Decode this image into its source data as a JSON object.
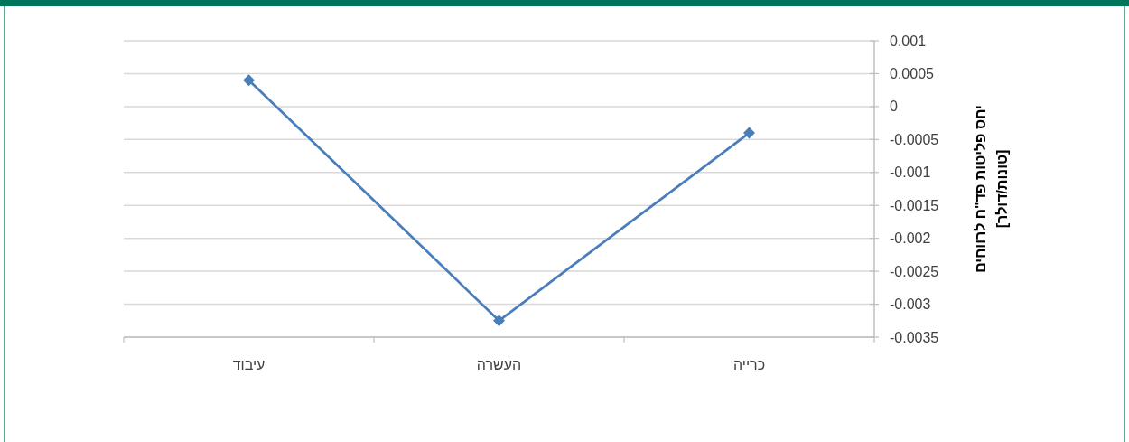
{
  "chart_data": {
    "type": "line",
    "categories": [
      "עיבוד",
      "העשרה",
      "כרייה"
    ],
    "ylabel": "יחס פליטות פד\"ח לרווחים [טונות/דולר]",
    "series": [
      {
        "color": "#4a7ebb",
        "values": [
          0.0004,
          -0.00325,
          -0.0004
        ]
      }
    ],
    "ylim": [
      -0.0035,
      0.001
    ],
    "yticks": [
      0.001,
      0.0005,
      0,
      -0.0005,
      -0.001,
      -0.0015,
      -0.002,
      -0.0025,
      -0.003,
      -0.0035
    ],
    "grid": "y",
    "marker": "diamond",
    "line_style": "solid"
  }
}
